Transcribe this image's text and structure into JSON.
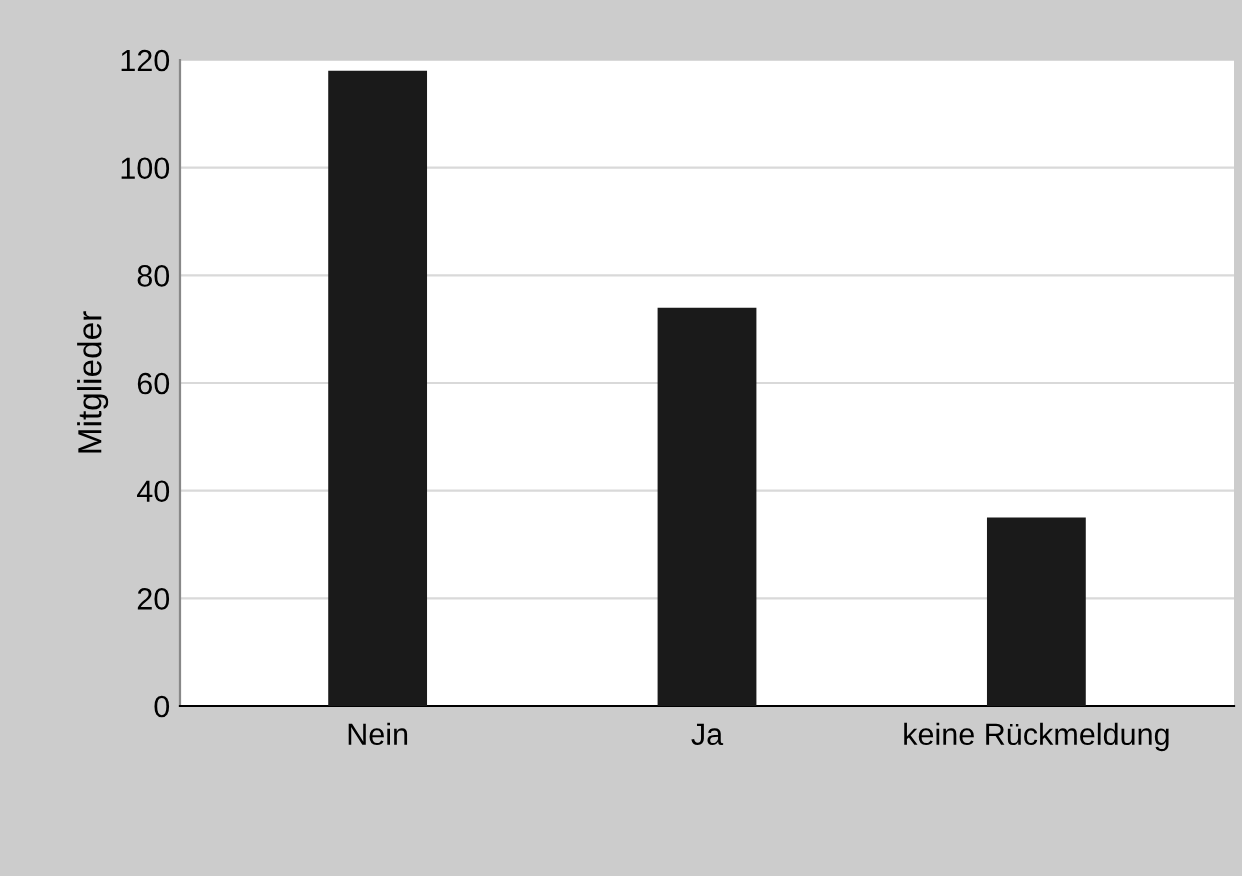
{
  "chart_data": {
    "type": "bar",
    "ylabel": "Mitglieder",
    "categories": [
      "Nein",
      "Ja",
      "keine Rückmeldung"
    ],
    "values": [
      118,
      74,
      35
    ],
    "color": "#1a1a1a",
    "ylim": [
      0,
      120
    ],
    "yticks": [
      0,
      20,
      40,
      60,
      80,
      100,
      120
    ],
    "grid": "y"
  }
}
